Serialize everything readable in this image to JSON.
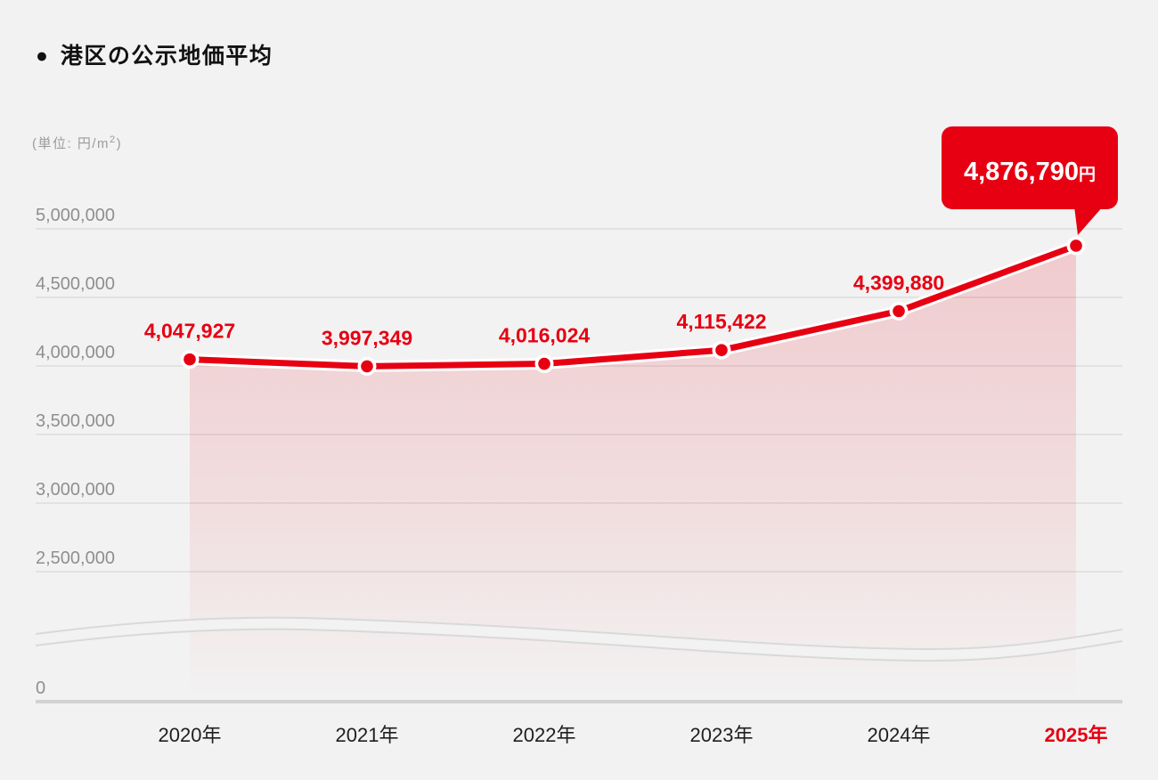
{
  "header": {
    "bullet_icon": "●",
    "title": "港区の公示地価平均"
  },
  "unit_label": {
    "prefix": "(単位: 円/m",
    "superscript": "2",
    "suffix": ")"
  },
  "colors": {
    "accent_red": "#e60012",
    "background": "#f2f2f2",
    "grid_line": "#dcdcdc",
    "axis_zero_line": "#d2d2d2",
    "tick_text": "#8f8f8f",
    "x_label_text": "#1f1f1f",
    "title_text": "#111111",
    "line_casing": "#ffffff",
    "area_fill_top": "rgba(230,0,18,0.17)",
    "area_fill_mid": "rgba(230,0,18,0.08)",
    "area_fill_bottom": "rgba(230,0,18,0)",
    "break_band_fill": "#f2f2f2",
    "break_band_stroke": "#d9d9d9",
    "callout_bg": "#e60012",
    "callout_text": "#ffffff"
  },
  "chart_data": {
    "type": "line",
    "title": "港区の公示地価平均",
    "unit": "円/m2",
    "categories": [
      "2020年",
      "2021年",
      "2022年",
      "2023年",
      "2024年",
      "2025年"
    ],
    "series": [
      {
        "name": "公示地価平均",
        "values": [
          4047927,
          3997349,
          4016024,
          4115422,
          4399880,
          4876790
        ]
      }
    ],
    "points": [
      {
        "year": "2020年",
        "value": 4047927,
        "label": "4,047,927",
        "highlighted": false
      },
      {
        "year": "2021年",
        "value": 3997349,
        "label": "3,997,349",
        "highlighted": false
      },
      {
        "year": "2022年",
        "value": 4016024,
        "label": "4,016,024",
        "highlighted": false
      },
      {
        "year": "2023年",
        "value": 4115422,
        "label": "4,115,422",
        "highlighted": false
      },
      {
        "year": "2024年",
        "value": 4399880,
        "label": "4,399,880",
        "highlighted": false
      },
      {
        "year": "2025年",
        "value": 4876790,
        "label": "4,876,790",
        "highlighted": true
      }
    ],
    "callout": {
      "value_label": "4,876,790",
      "unit": "円"
    },
    "y_axis": {
      "ticks": [
        {
          "label": "5,000,000",
          "value": 5000000
        },
        {
          "label": "4,500,000",
          "value": 4500000
        },
        {
          "label": "4,000,000",
          "value": 4000000
        },
        {
          "label": "3,500,000",
          "value": 3500000
        },
        {
          "label": "3,000,000",
          "value": 3000000
        },
        {
          "label": "2,500,000",
          "value": 2500000
        },
        {
          "label": "0",
          "value": 0
        }
      ],
      "axis_break": true,
      "range_top": 5000000
    },
    "xlabel": "",
    "ylabel": "円/m2",
    "grid": true,
    "legend": "none",
    "highlight_category": "2025年"
  }
}
